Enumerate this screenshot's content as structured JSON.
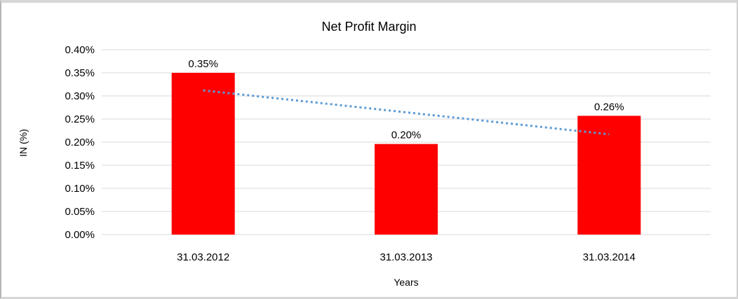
{
  "chart_data": {
    "type": "bar",
    "title": "Net Profit Margin",
    "xlabel": "Years",
    "ylabel": "IN (%)",
    "categories": [
      "31.03.2012",
      "31.03.2013",
      "31.03.2014"
    ],
    "values": [
      0.35,
      0.196,
      0.257
    ],
    "data_labels": [
      "0.35%",
      "0.20%",
      "0.26%"
    ],
    "ylim": [
      0,
      0.4
    ],
    "ytick_step": 0.05,
    "ytick_labels": [
      "0.00%",
      "0.05%",
      "0.10%",
      "0.15%",
      "0.20%",
      "0.25%",
      "0.30%",
      "0.35%",
      "0.40%"
    ],
    "grid": true,
    "legend": "none",
    "bar_color": "#ff0000",
    "gridline_color": "#d9d9d9",
    "text_color": "#000000",
    "trendline": {
      "type": "linear",
      "style": "dotted",
      "color": "#5b9bd5",
      "y_start": 0.312,
      "y_end": 0.217
    }
  }
}
